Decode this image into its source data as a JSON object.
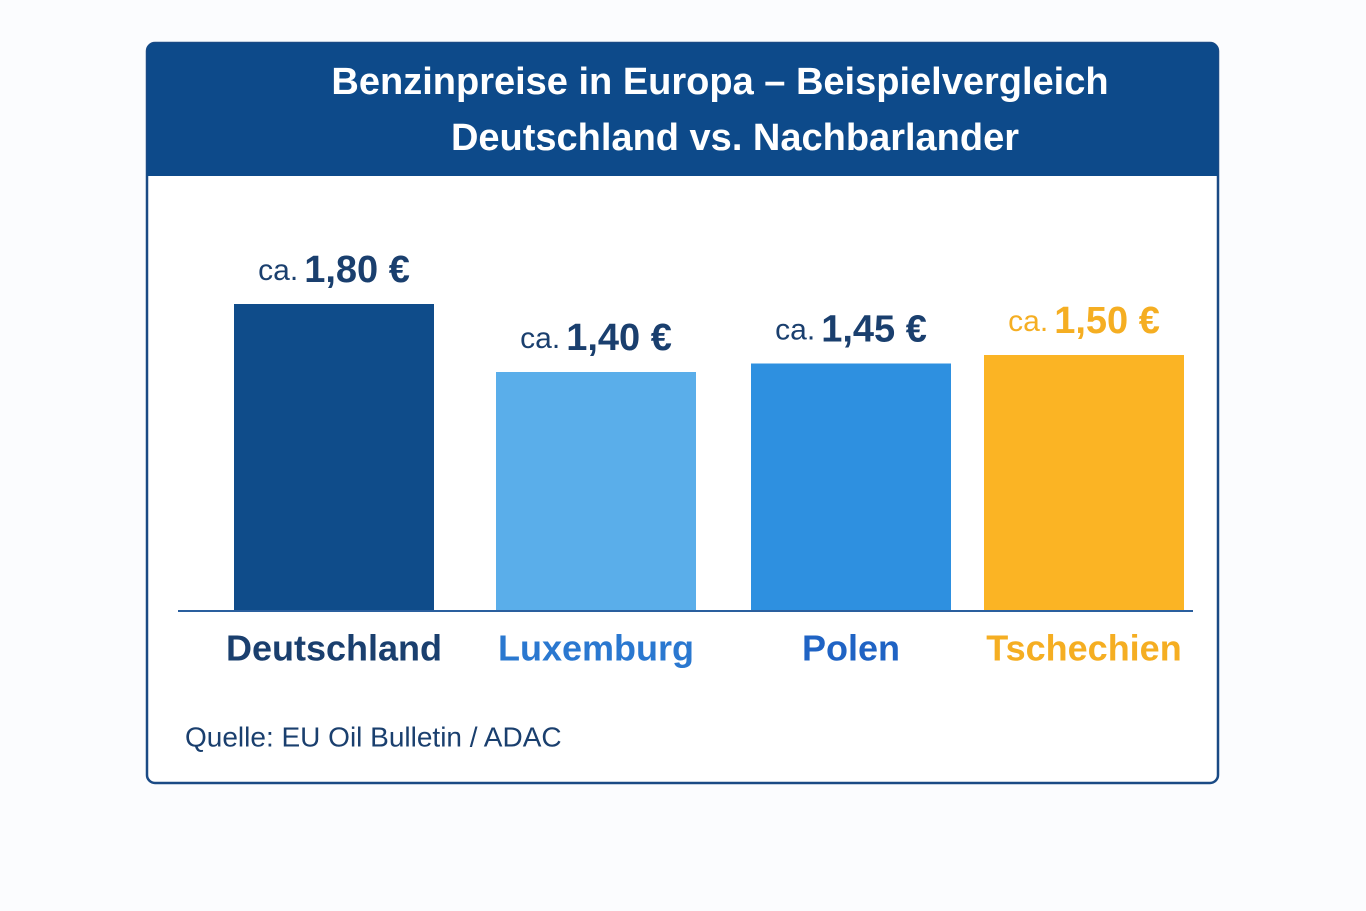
{
  "chart_data": {
    "type": "bar",
    "title": "Benzinpreise in Europa – Beispielvergleich",
    "subtitle": "Deutschland vs. Nachbarlander",
    "categories": [
      "Deutschland",
      "Luxemburg",
      "Polen",
      "Tschechien"
    ],
    "values": [
      1.8,
      1.4,
      1.45,
      1.5
    ],
    "value_label_prefix": "ca.",
    "value_labels": [
      "1,80 €",
      "1,40 €",
      "1,45 €",
      "1,50 €"
    ],
    "colors": [
      "#0f4c8a",
      "#5aaeea",
      "#2e90e0",
      "#fbb424"
    ],
    "label_colors": [
      "#1a3f6e",
      "#2a78d0",
      "#1f63c4",
      "#f5ae22"
    ],
    "source": "Quelle: EU Oil Bulletin / ADAC"
  }
}
